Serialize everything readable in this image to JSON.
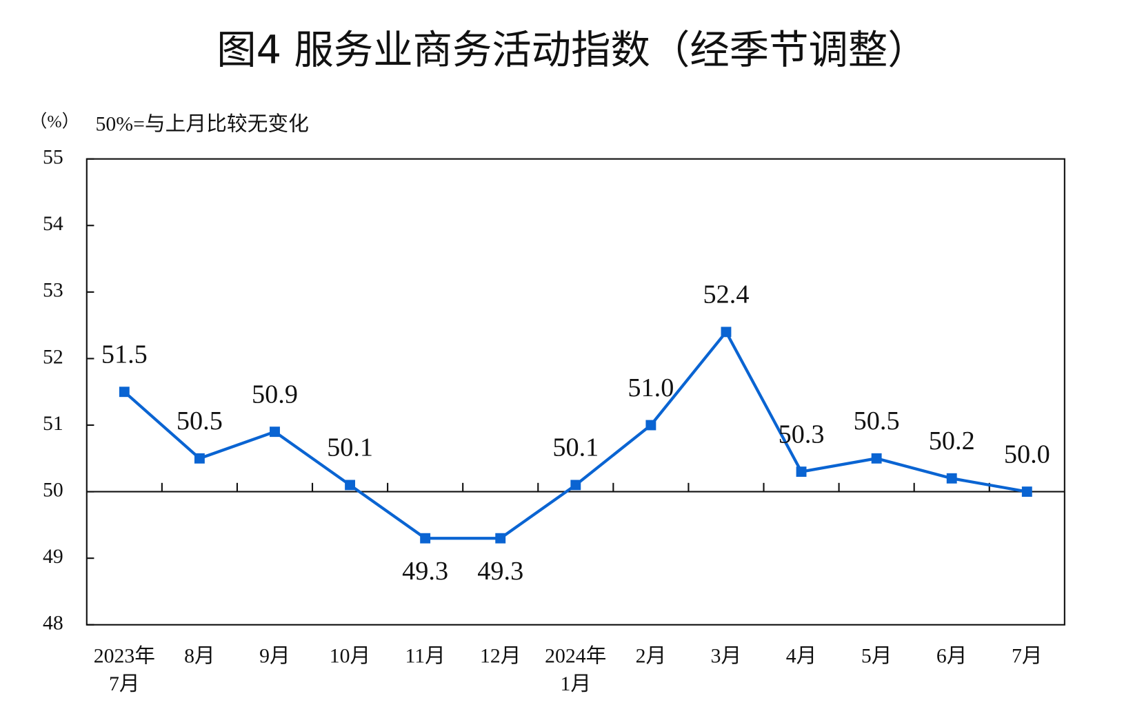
{
  "chart_data": {
    "type": "line",
    "title": "图4  服务业商务活动指数（经季节调整）",
    "y_unit": "（%）",
    "annotation": "50%=与上月比较无变化",
    "categories": [
      [
        "2023年",
        "7月"
      ],
      [
        "8月"
      ],
      [
        "9月"
      ],
      [
        "10月"
      ],
      [
        "11月"
      ],
      [
        "12月"
      ],
      [
        "2024年",
        "1月"
      ],
      [
        "2月"
      ],
      [
        "3月"
      ],
      [
        "4月"
      ],
      [
        "5月"
      ],
      [
        "6月"
      ],
      [
        "7月"
      ]
    ],
    "series": [
      {
        "name": "服务业商务活动指数",
        "color": "#0a64d2",
        "values": [
          51.5,
          50.5,
          50.9,
          50.1,
          49.3,
          49.3,
          50.1,
          51.0,
          52.4,
          50.3,
          50.5,
          50.2,
          50.0
        ],
        "value_labels": [
          "51.5",
          "50.5",
          "50.9",
          "50.1",
          "49.3",
          "49.3",
          "50.1",
          "51.0",
          "52.4",
          "50.3",
          "50.5",
          "50.2",
          "50.0"
        ]
      }
    ],
    "ylim": [
      48,
      55
    ],
    "yticks": [
      48,
      49,
      50,
      51,
      52,
      53,
      54,
      55
    ],
    "reference_line": 50
  }
}
